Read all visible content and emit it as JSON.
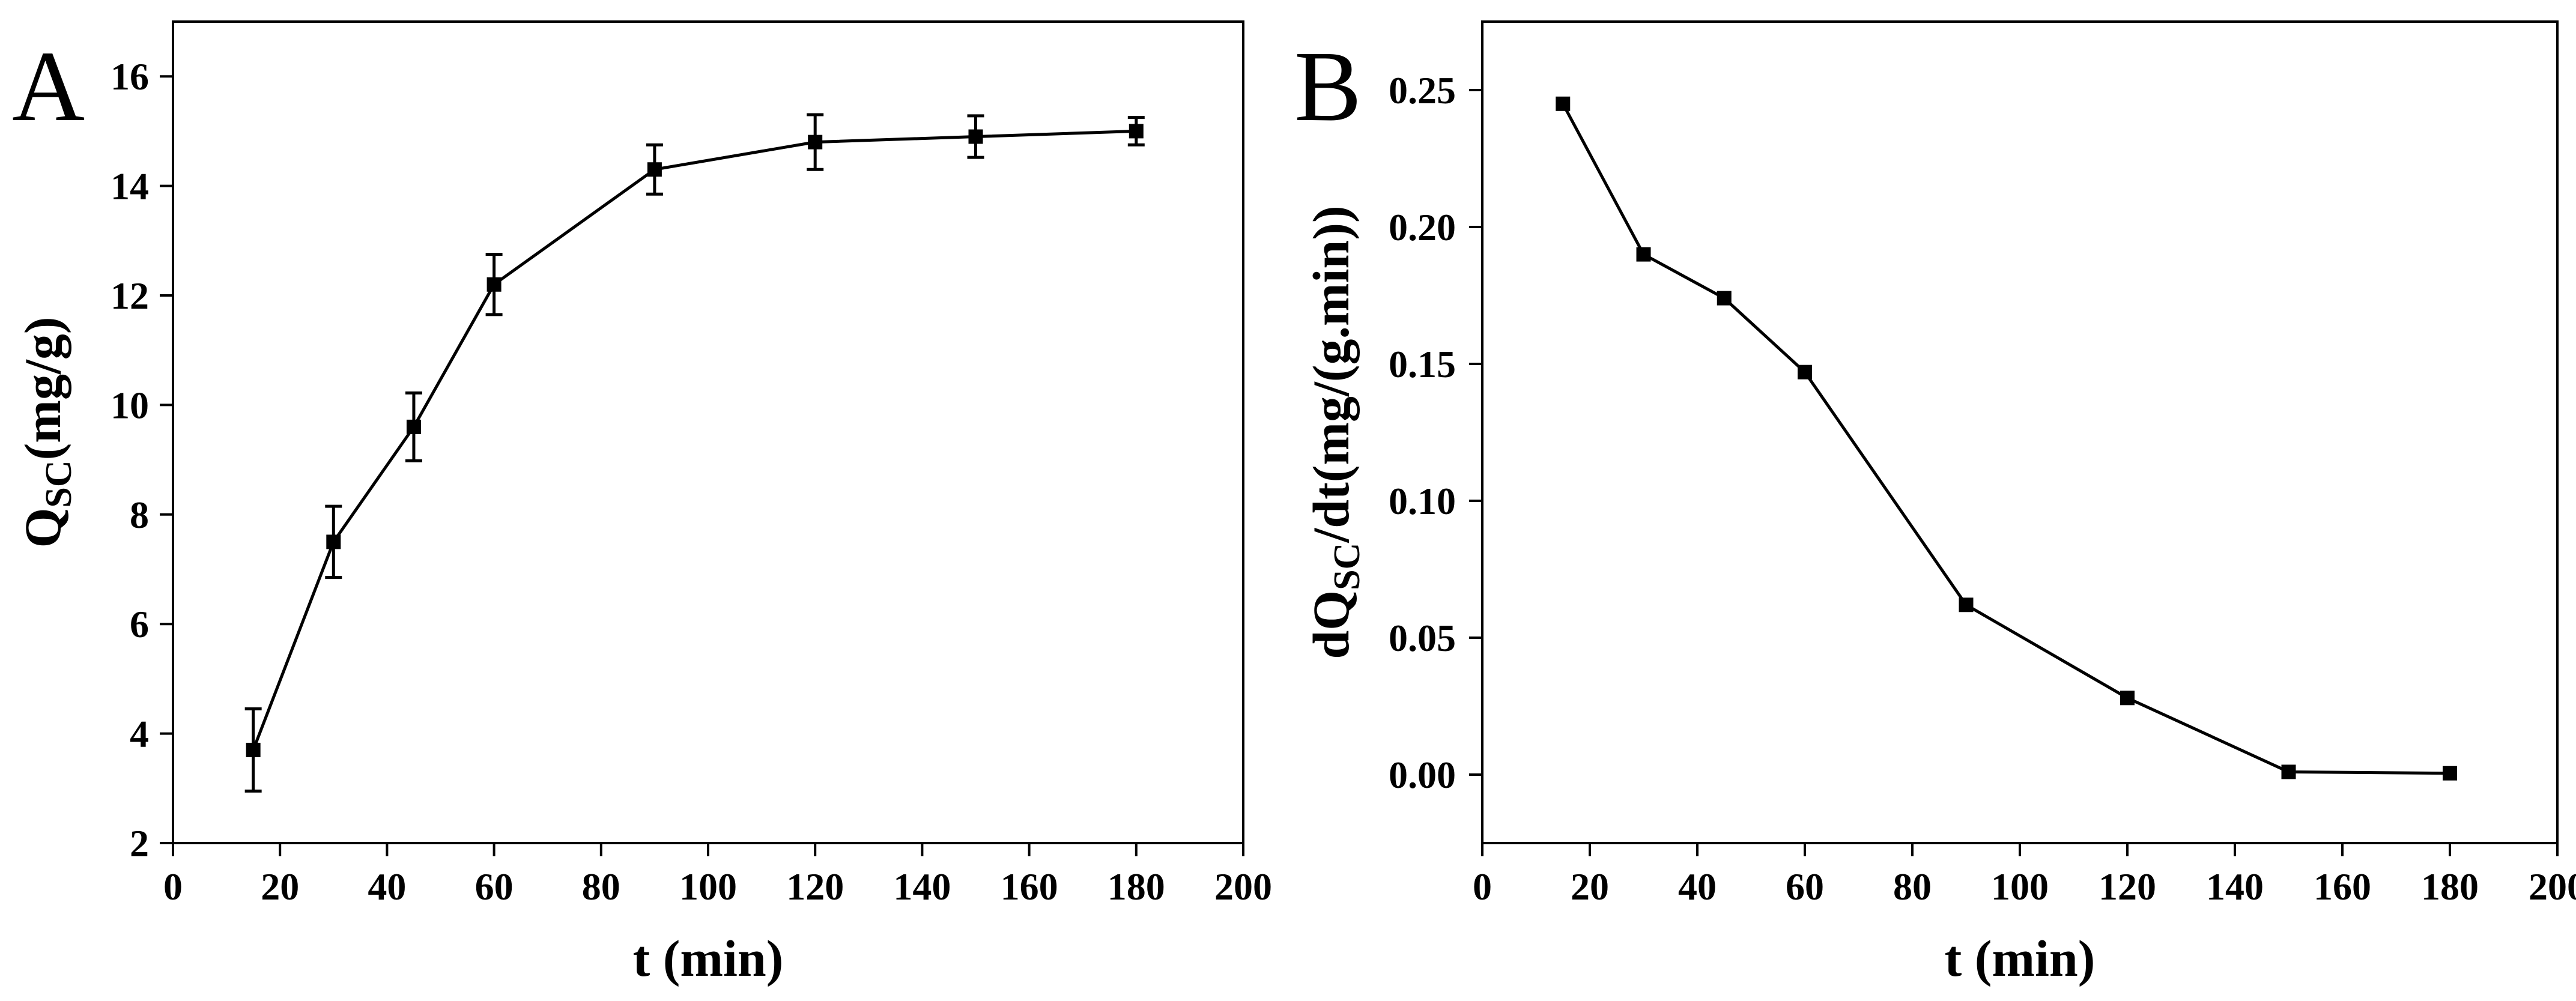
{
  "chart_data": [
    {
      "panel": "A",
      "type": "line",
      "xlabel": "t (min)",
      "ylabel_main": "Q",
      "ylabel_sub": "SC",
      "ylabel_tail": "(mg/g)",
      "xlim": [
        0,
        200
      ],
      "ylim": [
        2,
        17
      ],
      "xticks": [
        0,
        20,
        40,
        60,
        80,
        100,
        120,
        140,
        160,
        180,
        200
      ],
      "yticks": [
        2,
        4,
        6,
        8,
        10,
        12,
        14,
        16
      ],
      "xtick_labels": [
        "0",
        "20",
        "40",
        "60",
        "80",
        "100",
        "120",
        "140",
        "160",
        "180",
        "200"
      ],
      "ytick_labels": [
        "2",
        "4",
        "6",
        "8",
        "10",
        "12",
        "14",
        "16"
      ],
      "series": [
        {
          "name": "QSC",
          "x": [
            15,
            30,
            45,
            60,
            90,
            120,
            150,
            180
          ],
          "y": [
            3.7,
            7.5,
            9.6,
            12.2,
            14.3,
            14.8,
            14.9,
            15.0
          ],
          "error": [
            0.75,
            0.65,
            0.62,
            0.55,
            0.45,
            0.5,
            0.38,
            0.25
          ]
        }
      ]
    },
    {
      "panel": "B",
      "type": "line",
      "xlabel": "t (min)",
      "ylabel_main": "dQ",
      "ylabel_sub": "SC",
      "ylabel_tail": "/dt(mg/(g.min))",
      "xlim": [
        0,
        200
      ],
      "ylim": [
        -0.025,
        0.275
      ],
      "xticks": [
        0,
        20,
        40,
        60,
        80,
        100,
        120,
        140,
        160,
        180,
        200
      ],
      "yticks": [
        0,
        0.05,
        0.1,
        0.15,
        0.2,
        0.25
      ],
      "xtick_labels": [
        "0",
        "20",
        "40",
        "60",
        "80",
        "100",
        "120",
        "140",
        "160",
        "180",
        "200"
      ],
      "ytick_labels": [
        "0.00",
        "0.05",
        "0.10",
        "0.15",
        "0.20",
        "0.25"
      ],
      "series": [
        {
          "name": "dQSC/dt",
          "x": [
            15,
            30,
            45,
            60,
            90,
            120,
            150,
            180
          ],
          "y": [
            0.245,
            0.19,
            0.174,
            0.147,
            0.062,
            0.028,
            0.001,
            0.0005
          ]
        }
      ]
    }
  ]
}
